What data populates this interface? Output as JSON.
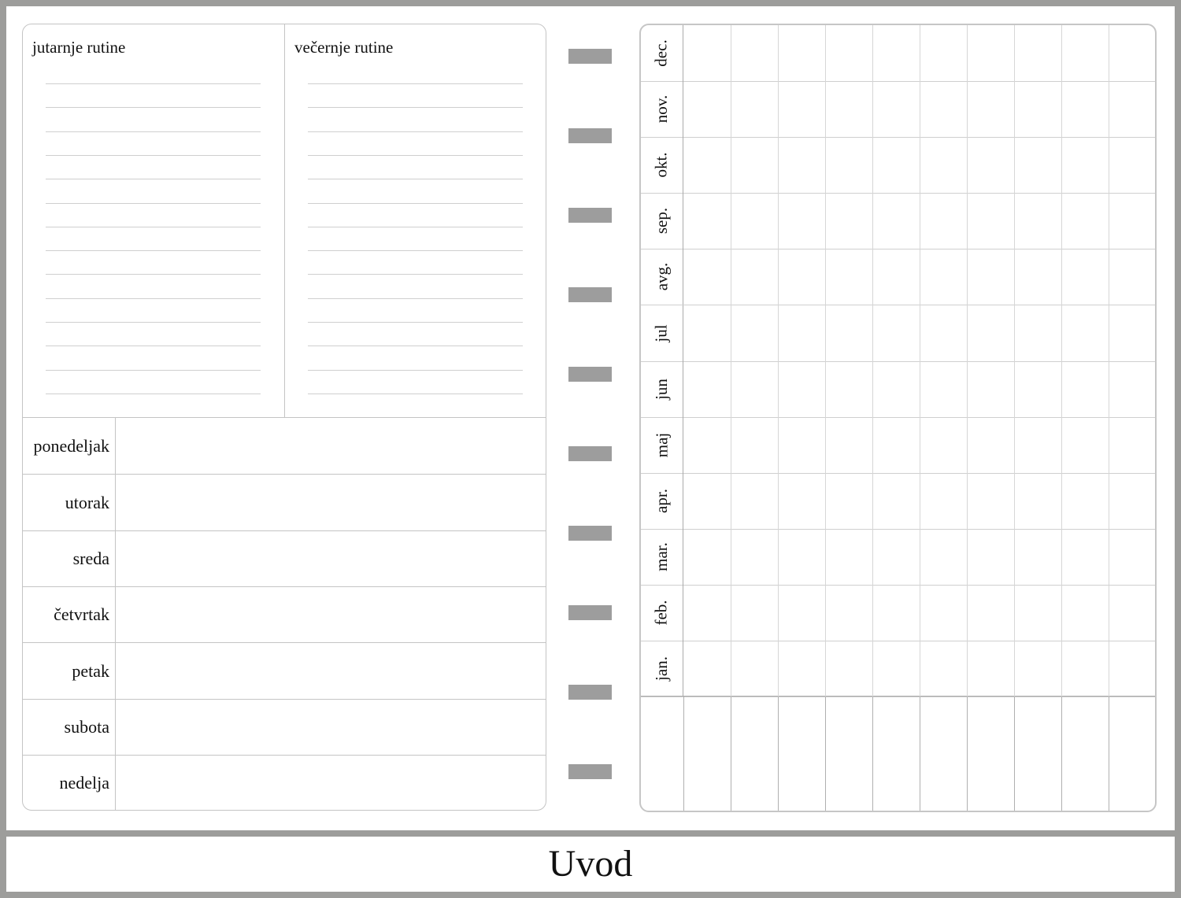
{
  "routines": {
    "morning_title": "jutarnje rutine",
    "evening_title": "večernje rutine",
    "line_count": 14
  },
  "days": [
    "ponedeljak",
    "utorak",
    "sreda",
    "četvrtak",
    "petak",
    "subota",
    "nedelja"
  ],
  "months": [
    "dec.",
    "nov.",
    "okt.",
    "sep.",
    "avg.",
    "jul",
    "jun",
    "maj",
    "apr.",
    "mar.",
    "feb.",
    "jan."
  ],
  "tracker_columns": 10,
  "binder_tabs": 10,
  "footer": {
    "title": "Uvod"
  },
  "colors": {
    "frame": "#9d9d9b",
    "tab": "#9d9d9d",
    "grid": "#c4c4c4"
  }
}
